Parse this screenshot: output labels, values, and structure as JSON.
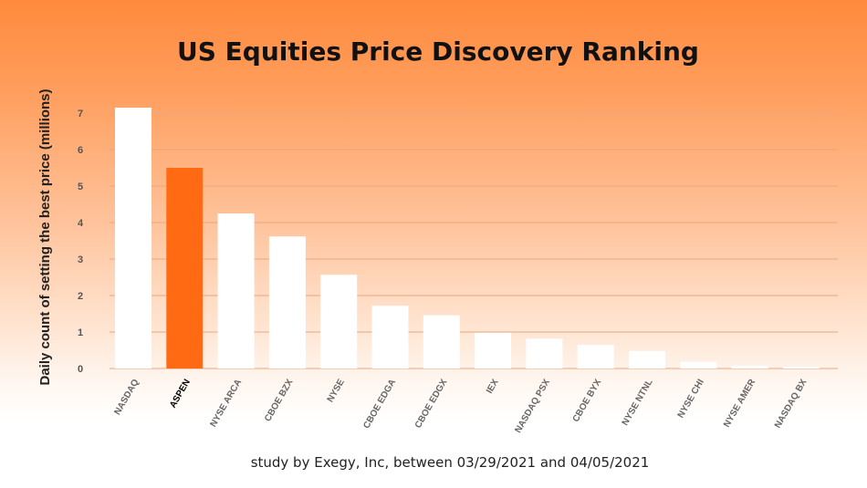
{
  "chart_data": {
    "type": "bar",
    "title": "US Equities Price Discovery Ranking",
    "ylabel": "Daily count of setting the best price (millions)",
    "xlabel": "",
    "ylim": [
      0,
      7.3
    ],
    "yticks": [
      "0",
      "1",
      "2",
      "3",
      "4",
      "5",
      "6",
      "7"
    ],
    "grid": true,
    "categories": [
      "NASDAQ",
      "ASPEN",
      "NYSE ARCA",
      "CBOE BZX",
      "NYSE",
      "CBOE EDGA",
      "CBOE EDGX",
      "IEX",
      "NASDAQ PSX",
      "CBOE BYX",
      "NYSE NTNL",
      "NYSE CHI",
      "NYSE AMER",
      "NASDAQ BX"
    ],
    "values": [
      7.15,
      5.5,
      4.25,
      3.62,
      2.57,
      1.72,
      1.46,
      0.98,
      0.82,
      0.65,
      0.48,
      0.18,
      0.07,
      0.05
    ],
    "highlight": "ASPEN",
    "colors": {
      "bar": "#ffffff",
      "highlight": "#ff6a13"
    },
    "footnote": "study by Exegy, Inc, between 03/29/2021 and 04/05/2021"
  }
}
